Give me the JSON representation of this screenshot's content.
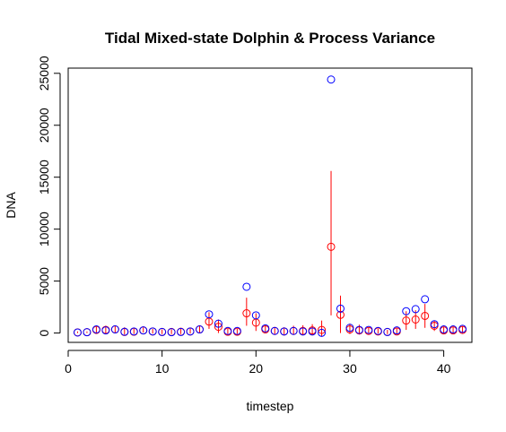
{
  "chart_data": {
    "type": "scatter",
    "title": "Tidal Mixed-state Dolphin & Process Variance",
    "xlabel": "timestep",
    "ylabel": "DNA",
    "xlim": [
      0,
      43
    ],
    "ylim": [
      -900,
      25500
    ],
    "x_ticks": [
      0,
      10,
      20,
      30,
      40
    ],
    "y_ticks": [
      0,
      5000,
      10000,
      15000,
      20000,
      25000
    ],
    "x_tick_labels": [
      "0",
      "10",
      "20",
      "30",
      "40"
    ],
    "y_tick_labels": [
      "0",
      "5000",
      "10000",
      "15000",
      "20000",
      "25000"
    ],
    "grid": false,
    "colors": {
      "observed": "#0000ff",
      "estimate": "#ff0000",
      "frame": "#000000"
    },
    "series": [
      {
        "marker": "open-circle",
        "color": "#0000ff",
        "x": [
          1,
          2,
          3,
          4,
          5,
          6,
          7,
          8,
          9,
          10,
          11,
          12,
          13,
          14,
          15,
          16,
          17,
          18,
          19,
          20,
          21,
          22,
          23,
          24,
          25,
          26,
          27,
          28,
          29,
          30,
          31,
          32,
          33,
          34,
          35,
          36,
          37,
          38,
          39,
          40,
          41,
          42
        ],
        "values": [
          50,
          80,
          350,
          250,
          350,
          120,
          150,
          250,
          150,
          100,
          80,
          100,
          150,
          350,
          1800,
          900,
          200,
          200,
          4450,
          1700,
          450,
          200,
          150,
          200,
          150,
          150,
          20,
          24400,
          2350,
          500,
          300,
          300,
          200,
          100,
          250,
          2100,
          2300,
          3250,
          850,
          350,
          350,
          400
        ]
      },
      {
        "marker": "open-circle-with-interval",
        "color": "#ff0000",
        "x": [
          1,
          2,
          3,
          4,
          5,
          6,
          7,
          8,
          9,
          10,
          11,
          12,
          13,
          14,
          15,
          16,
          17,
          18,
          19,
          20,
          21,
          22,
          23,
          24,
          25,
          26,
          27,
          28,
          29,
          30,
          31,
          32,
          33,
          34,
          35,
          36,
          37,
          38,
          39,
          40,
          41,
          42
        ],
        "values": [
          60,
          80,
          300,
          300,
          350,
          100,
          120,
          250,
          150,
          100,
          100,
          120,
          150,
          350,
          1100,
          600,
          120,
          120,
          1900,
          1000,
          350,
          200,
          150,
          200,
          200,
          250,
          300,
          8300,
          1750,
          350,
          250,
          200,
          150,
          100,
          150,
          1200,
          1300,
          1650,
          700,
          250,
          250,
          300
        ],
        "lower": [
          0,
          0,
          50,
          -50,
          50,
          -150,
          -100,
          50,
          -50,
          -100,
          -100,
          -100,
          -50,
          50,
          400,
          0,
          -100,
          -100,
          700,
          200,
          0,
          -100,
          -150,
          -150,
          -150,
          -200,
          -300,
          1700,
          0,
          -100,
          -150,
          0,
          -50,
          -100,
          -100,
          300,
          400,
          500,
          200,
          -100,
          -50,
          0
        ],
        "upper": [
          150,
          150,
          600,
          700,
          700,
          550,
          500,
          550,
          400,
          350,
          350,
          400,
          450,
          700,
          2000,
          1300,
          400,
          400,
          3400,
          1900,
          800,
          550,
          550,
          700,
          750,
          850,
          1200,
          15600,
          3600,
          900,
          800,
          500,
          400,
          300,
          450,
          2100,
          2200,
          2800,
          1200,
          600,
          600,
          650
        ]
      }
    ]
  }
}
